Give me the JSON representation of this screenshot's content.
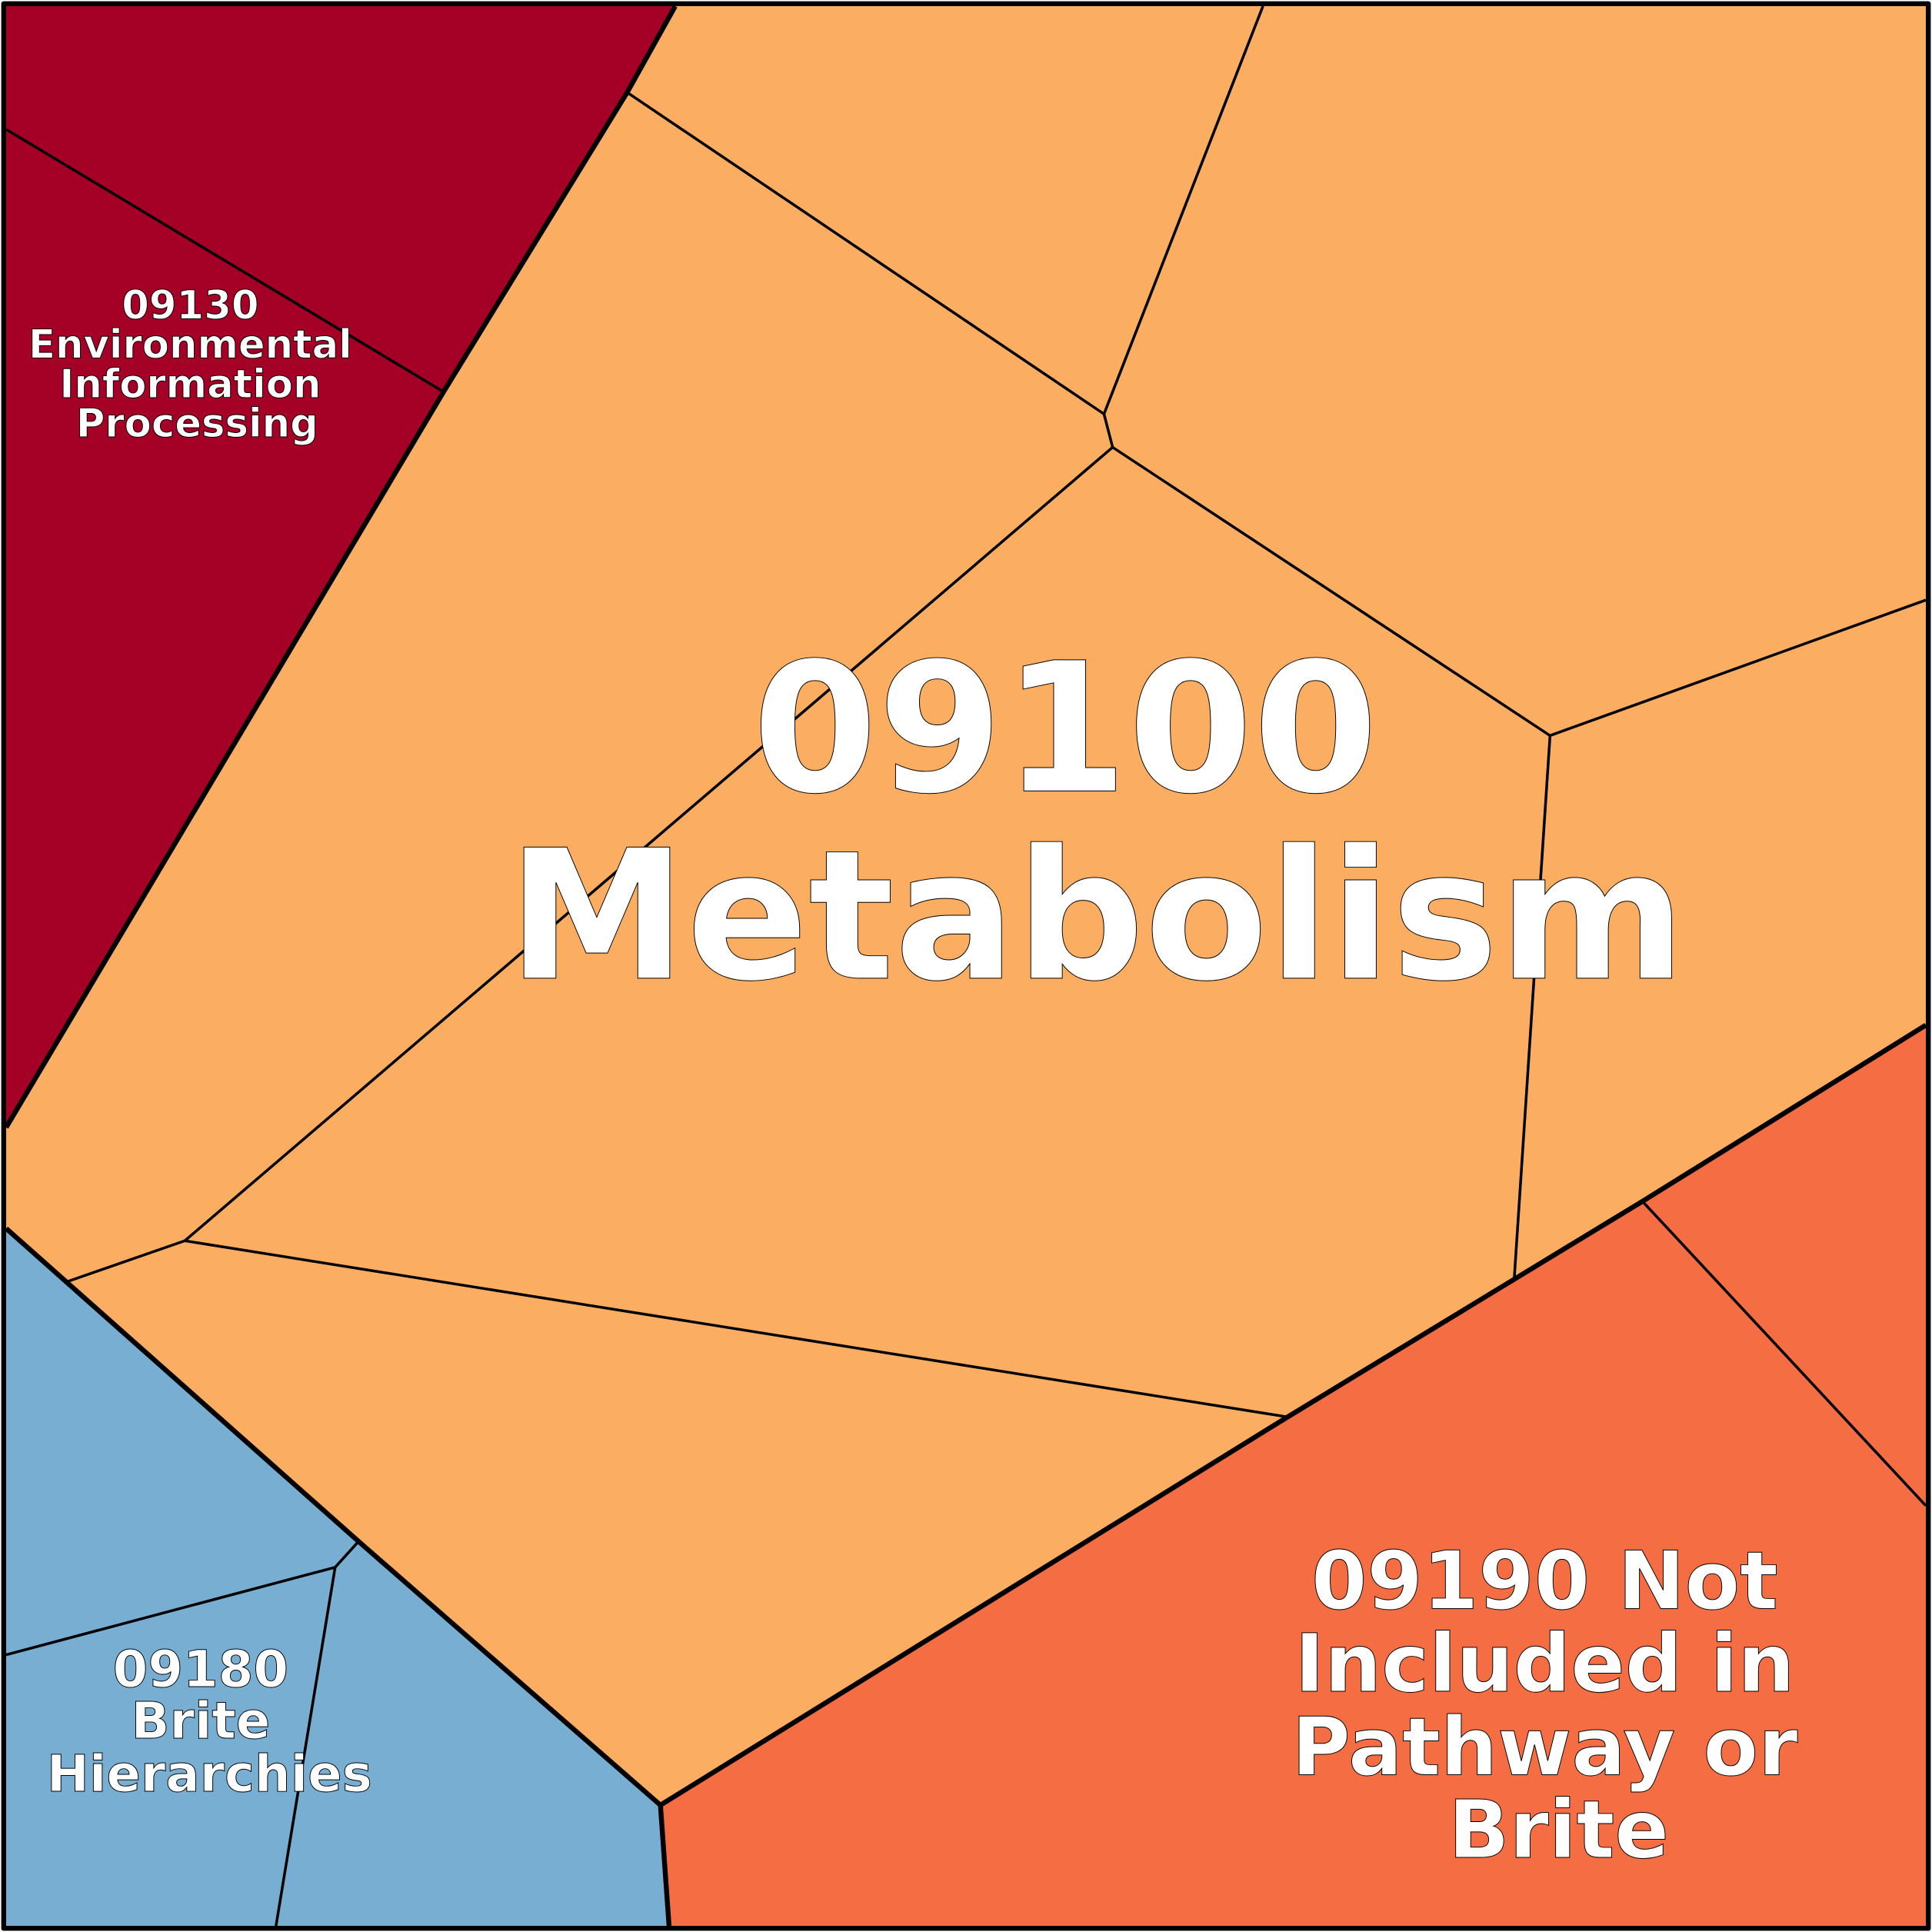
{
  "regions": [
    {
      "label_lines": [
        "09130",
        "Environmental",
        "Information",
        "Processing"
      ]
    },
    {
      "label_lines": [
        "09100",
        "Metabolism"
      ]
    },
    {
      "label_lines": [
        "09180",
        "Brite",
        "Hierarchies"
      ]
    },
    {
      "label_lines": [
        "09190 Not",
        "Included in",
        "Pathway or",
        "Brite"
      ]
    }
  ]
}
